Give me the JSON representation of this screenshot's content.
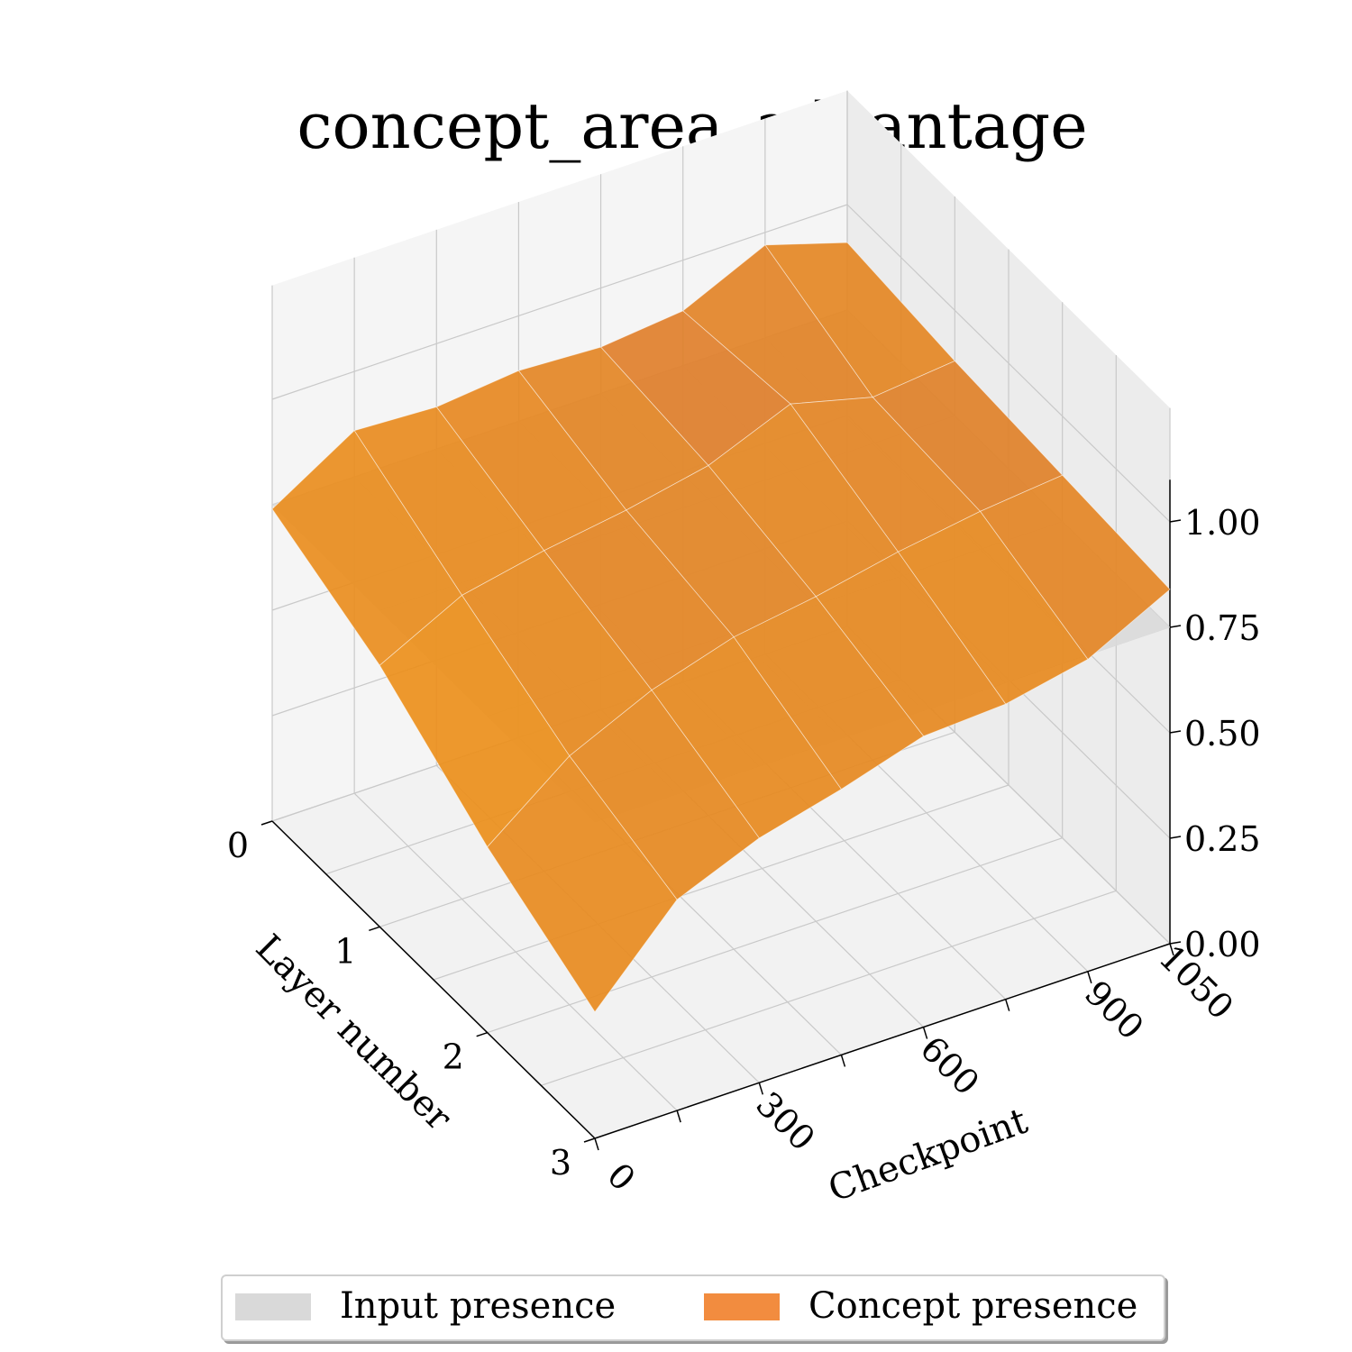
{
  "chart_data": {
    "type": "surface3d",
    "title": "concept_area_advantage",
    "xlabel": "Checkpoint",
    "ylabel": "Layer number",
    "zlabel": "",
    "checkpoints": [
      0,
      150,
      300,
      450,
      600,
      750,
      900,
      1050
    ],
    "layers": [
      0,
      1,
      2,
      3
    ],
    "xticks": [
      "0",
      "300",
      "600",
      "900",
      "1050"
    ],
    "yticks": [
      "0",
      "1",
      "2",
      "3"
    ],
    "zticks": [
      "0.00",
      "0.25",
      "0.50",
      "0.75",
      "1.00"
    ],
    "zlim": [
      0,
      1
    ],
    "series": [
      {
        "name": "Input presence",
        "color": "#d9d9d9",
        "values": [
          [
            0.75,
            0.75,
            0.75,
            0.75,
            0.75,
            0.75,
            0.75,
            0.75
          ],
          [
            0.75,
            0.75,
            0.75,
            0.75,
            0.75,
            0.75,
            0.75,
            0.75
          ],
          [
            0.75,
            0.75,
            0.75,
            0.75,
            0.75,
            0.75,
            0.75,
            0.75
          ],
          [
            0.75,
            0.75,
            0.75,
            0.75,
            0.75,
            0.75,
            0.75,
            0.75
          ]
        ]
      },
      {
        "name": "Concept presence",
        "color": "#f28c3f",
        "values": [
          [
            0.74,
            0.86,
            0.85,
            0.87,
            0.86,
            0.88,
            0.97,
            0.91
          ],
          [
            0.62,
            0.72,
            0.76,
            0.79,
            0.83,
            0.91,
            0.86,
            0.88
          ],
          [
            0.44,
            0.59,
            0.68,
            0.74,
            0.77,
            0.81,
            0.84,
            0.86
          ],
          [
            0.3,
            0.5,
            0.58,
            0.63,
            0.69,
            0.7,
            0.74,
            0.84
          ]
        ]
      }
    ],
    "legend": {
      "position": "bottom-center",
      "columns": 2
    },
    "grid": true
  }
}
